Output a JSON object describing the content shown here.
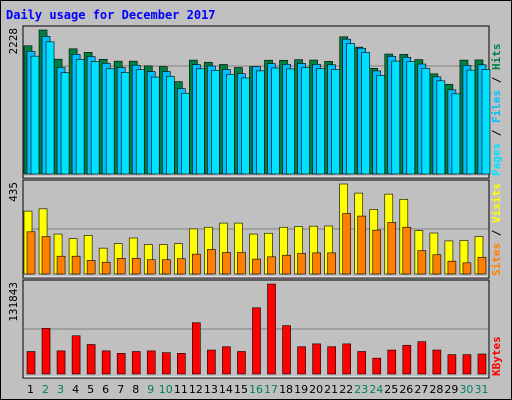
{
  "chart_data": {
    "type": "bar",
    "title": "Daily usage for December 2017",
    "categories": [
      "1",
      "2",
      "3",
      "4",
      "5",
      "6",
      "7",
      "8",
      "9",
      "10",
      "11",
      "12",
      "13",
      "14",
      "15",
      "16",
      "17",
      "18",
      "19",
      "20",
      "21",
      "22",
      "23",
      "24",
      "25",
      "26",
      "27",
      "28",
      "29",
      "30",
      "31"
    ],
    "weekend_days": [
      "2",
      "3",
      "9",
      "10",
      "16",
      "17",
      "23",
      "24",
      "30",
      "31"
    ],
    "panels": [
      {
        "name": "hits-files-pages",
        "ymax_label": "2228",
        "ymax": 2228,
        "axis_label_parts": [
          "Pages",
          "Files",
          "Hits"
        ],
        "series": [
          {
            "name": "Hits",
            "color": "#008040",
            "values": [
              1984,
              2228,
              1777,
              1937,
              1882,
              1775,
              1746,
              1746,
              1673,
              1660,
              1429,
              1762,
              1729,
              1695,
              1648,
              1660,
              1761,
              1760,
              1769,
              1763,
              1742,
              2123,
              1963,
              1635,
              1856,
              1851,
              1770,
              1550,
              1387,
              1762,
              1765
            ]
          },
          {
            "name": "Files",
            "color": "#00bfff",
            "values": [
              1898,
              2130,
              1649,
              1851,
              1817,
              1713,
              1648,
              1683,
              1585,
              1586,
              1322,
              1693,
              1671,
              1617,
              1552,
              1660,
              1707,
              1696,
              1711,
              1696,
              1690,
              2086,
              1946,
              1595,
              1820,
              1806,
              1701,
              1503,
              1302,
              1681,
              1690
            ]
          },
          {
            "name": "Pages",
            "color": "#00e0ff",
            "values": [
              1823,
              2044,
              1567,
              1772,
              1740,
              1628,
              1571,
              1614,
              1500,
              1512,
              1250,
              1628,
              1604,
              1540,
              1486,
              1596,
              1640,
              1626,
              1647,
              1630,
              1618,
              2018,
              1880,
              1525,
              1747,
              1738,
              1633,
              1442,
              1240,
              1607,
              1617
            ]
          }
        ]
      },
      {
        "name": "visits-sites",
        "ymax_label": "435",
        "ymax": 435,
        "axis_label_parts": [
          "Sites",
          "Visits"
        ],
        "series": [
          {
            "name": "Visits",
            "color": "#ffff00",
            "values": [
              304,
              315,
              193,
              171,
              187,
              125,
              147,
              174,
              142,
              142,
              147,
              218,
              226,
              246,
              246,
              193,
              197,
              226,
              229,
              231,
              232,
              435,
              391,
              312,
              386,
              361,
              210,
              198,
              160,
              162,
              181
            ]
          },
          {
            "name": "Sites",
            "color": "#ff8000",
            "values": [
              204,
              181,
              86,
              86,
              66,
              57,
              76,
              76,
              69,
              69,
              74,
              96,
              119,
              104,
              104,
              72,
              83,
              91,
              99,
              102,
              102,
              292,
              280,
              212,
              249,
              226,
              113,
              93,
              62,
              54,
              81
            ]
          }
        ]
      },
      {
        "name": "kbytes",
        "ymax_label": "131843",
        "ymax": 131843,
        "axis_label_parts": [
          "KBytes"
        ],
        "series": [
          {
            "name": "KBytes",
            "color": "#ff0000",
            "values": [
              32948,
              66961,
              33884,
              56006,
              43216,
              33882,
              30215,
              32948,
              33884,
              31209,
              30215,
              75086,
              35112,
              39921,
              32948,
              97038,
              131843,
              70897,
              39921,
              44125,
              39921,
              44125,
              32948,
              23212,
              35112,
              42107,
              47315,
              35112,
              28317,
              28317,
              29237
            ]
          }
        ]
      }
    ]
  }
}
